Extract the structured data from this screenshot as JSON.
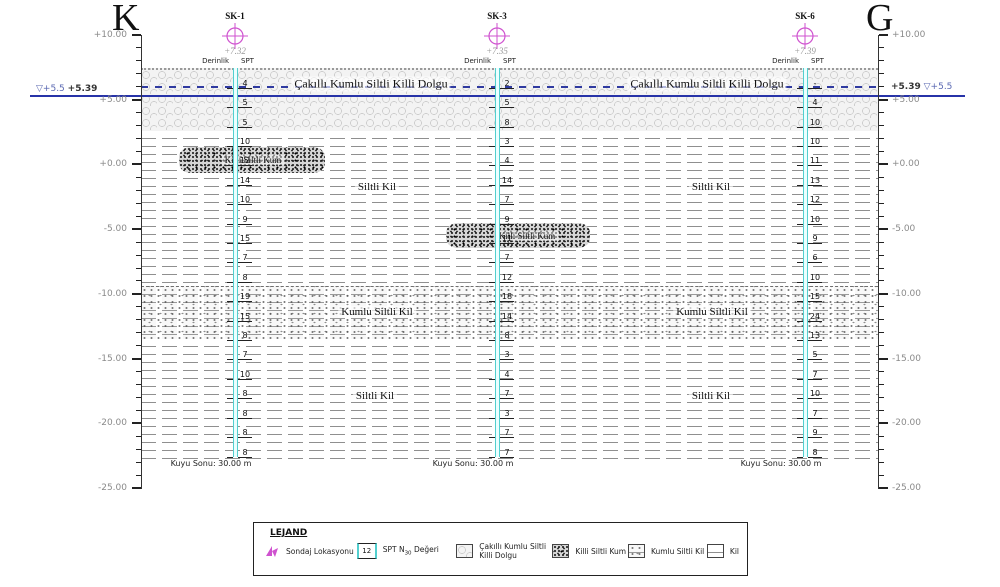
{
  "titles": {
    "left": "K",
    "right": "G"
  },
  "axis": {
    "labels": [
      "+10.00",
      "+5.00",
      "+0.00",
      "-5.00",
      "-10.00",
      "-15.00",
      "-20.00",
      "-25.00"
    ]
  },
  "water": {
    "left_symbol": "▽+5.5",
    "left_value": "+5.39",
    "right_value": "+5.39",
    "right_symbol": "▽+5.5"
  },
  "layers": {
    "fill_left": "Çakıllı Kumlu Siltli Killi Dolgu",
    "fill_right": "Çakıllı Kumlu Siltli Killi Dolgu",
    "silt_upper_left": "Siltli Kil",
    "silt_upper_right": "Siltli Kil",
    "lens1": "Killi Siltli Kum",
    "lens2": "Killi Siltli Kum",
    "sandy_left": "Kumlu Siltli Kil",
    "sandy_right": "Kumlu Siltli Kil",
    "silt_lower_left": "Siltli Kil",
    "silt_lower_right": "Siltli Kil"
  },
  "boreholes": [
    {
      "name": "SK-1",
      "elevation": "+7.32",
      "depth_header": "Derinlik",
      "spt_header": "SPT",
      "spt": [
        "4",
        "5",
        "5",
        "10",
        "12",
        "14",
        "10",
        "9",
        "15",
        "7",
        "8",
        "19",
        "15",
        "8",
        "7",
        "10",
        "8",
        "8",
        "8",
        "8"
      ],
      "end_label": "Kuyu Sonu: 30.00 m"
    },
    {
      "name": "SK-3",
      "elevation": "+7.35",
      "depth_header": "Derinlik",
      "spt_header": "SPT",
      "spt": [
        "2",
        "5",
        "8",
        "3",
        "4",
        "14",
        "7",
        "9",
        "11",
        "7",
        "12",
        "18",
        "14",
        "8",
        "3",
        "4",
        "7",
        "3",
        "7",
        "7"
      ],
      "end_label": "Kuyu Sonu: 30.00 m"
    },
    {
      "name": "SK-6",
      "elevation": "+7.39",
      "depth_header": "Derinlik",
      "spt_header": "SPT",
      "spt": [
        "-",
        "4",
        "10",
        "10",
        "11",
        "13",
        "12",
        "10",
        "9",
        "6",
        "10",
        "15",
        "24",
        "13",
        "5",
        "7",
        "10",
        "7",
        "9",
        "8"
      ],
      "end_label": "Kuyu Sonu: 30.00 m"
    }
  ],
  "legend": {
    "title": "LEJAND",
    "items": [
      {
        "label": "Sondaj Lokasyonu"
      },
      {
        "label_pre": "SPT N",
        "label_sub": "30",
        "label_post": " Değeri",
        "value": "12"
      },
      {
        "label": "Çakıllı Kumlu Siltli Killi Dolgu"
      },
      {
        "label": "Killi Siltli Kum"
      },
      {
        "label": "Kumlu Siltli Kil"
      },
      {
        "label": "Kil"
      }
    ]
  },
  "colors": {
    "borehole_cyan": "#52cfcf",
    "borehole_magenta": "#cf52cf",
    "water_blue": "#2733a8",
    "pattern_gray": "#8f8f8f"
  }
}
